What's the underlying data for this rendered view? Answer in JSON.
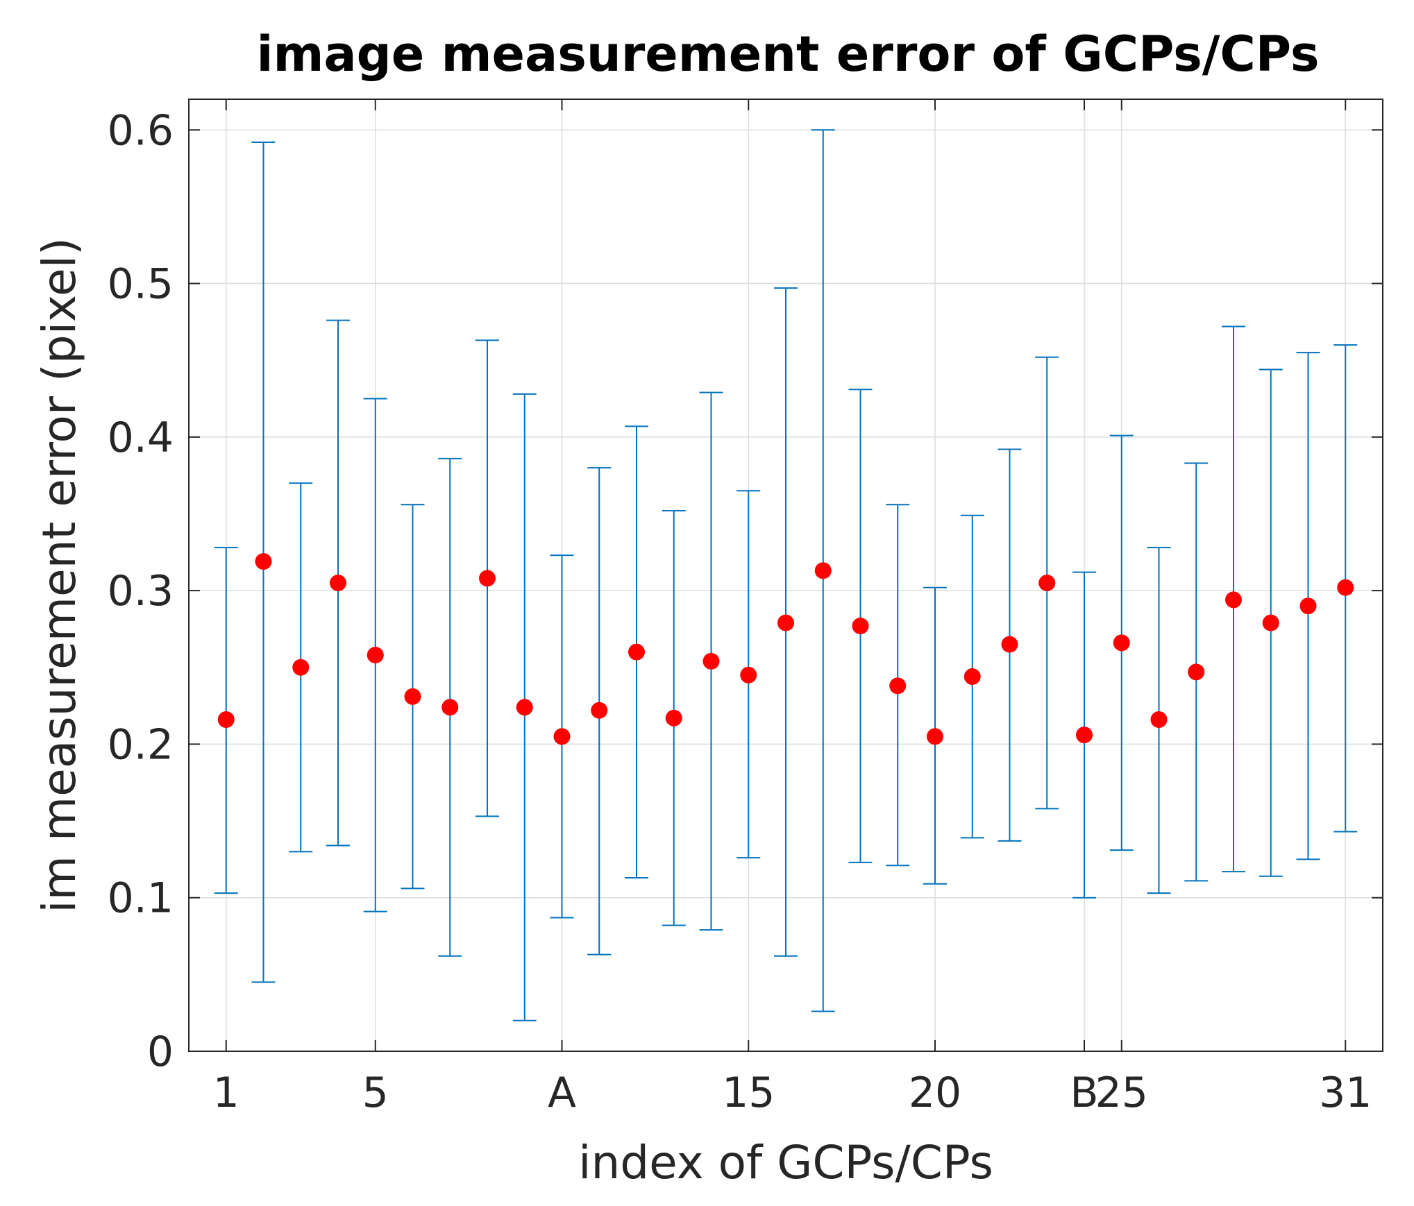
{
  "chart_data": {
    "type": "scatter",
    "title": "image measurement error of GCPs/CPs",
    "xlabel": "index of GCPs/CPs",
    "ylabel": "im measurement error (pixel)",
    "xlim": [
      0,
      32
    ],
    "ylim": [
      0,
      0.62
    ],
    "grid": true,
    "x_ticks": [
      1,
      5,
      10,
      15,
      20,
      24,
      25,
      31
    ],
    "x_tick_labels": [
      "1",
      "5",
      "A",
      "15",
      "20",
      "B",
      "25",
      "31"
    ],
    "y_ticks": [
      0,
      0.1,
      0.2,
      0.3,
      0.4,
      0.5,
      0.6
    ],
    "y_tick_labels": [
      "0",
      "0.1",
      "0.2",
      "0.3",
      "0.4",
      "0.5",
      "0.6"
    ],
    "colors": {
      "marker": "#ff0000",
      "errorbar": "#0072BD",
      "axis": "#262626",
      "grid": "#dcdcdc"
    },
    "series": [
      {
        "marker": "filled-circle",
        "x": [
          1,
          2,
          3,
          4,
          5,
          6,
          7,
          8,
          9,
          10,
          11,
          12,
          13,
          14,
          15,
          16,
          17,
          18,
          19,
          20,
          21,
          22,
          23,
          24,
          25,
          26,
          27,
          28,
          29,
          30,
          31
        ],
        "y": [
          0.216,
          0.319,
          0.25,
          0.305,
          0.258,
          0.231,
          0.224,
          0.308,
          0.224,
          0.205,
          0.222,
          0.26,
          0.217,
          0.254,
          0.245,
          0.279,
          0.313,
          0.277,
          0.238,
          0.205,
          0.244,
          0.265,
          0.305,
          0.206,
          0.266,
          0.216,
          0.247,
          0.294,
          0.279,
          0.29,
          0.302
        ],
        "lower": [
          0.103,
          0.045,
          0.13,
          0.134,
          0.091,
          0.106,
          0.062,
          0.153,
          0.02,
          0.087,
          0.063,
          0.113,
          0.082,
          0.079,
          0.126,
          0.062,
          0.026,
          0.123,
          0.121,
          0.109,
          0.139,
          0.137,
          0.158,
          0.1,
          0.131,
          0.103,
          0.111,
          0.117,
          0.114,
          0.125,
          0.143
        ],
        "upper": [
          0.328,
          0.592,
          0.37,
          0.476,
          0.425,
          0.356,
          0.386,
          0.463,
          0.428,
          0.323,
          0.38,
          0.407,
          0.352,
          0.429,
          0.365,
          0.497,
          0.6,
          0.431,
          0.356,
          0.302,
          0.349,
          0.392,
          0.452,
          0.312,
          0.401,
          0.328,
          0.383,
          0.472,
          0.444,
          0.455,
          0.46
        ]
      }
    ]
  }
}
